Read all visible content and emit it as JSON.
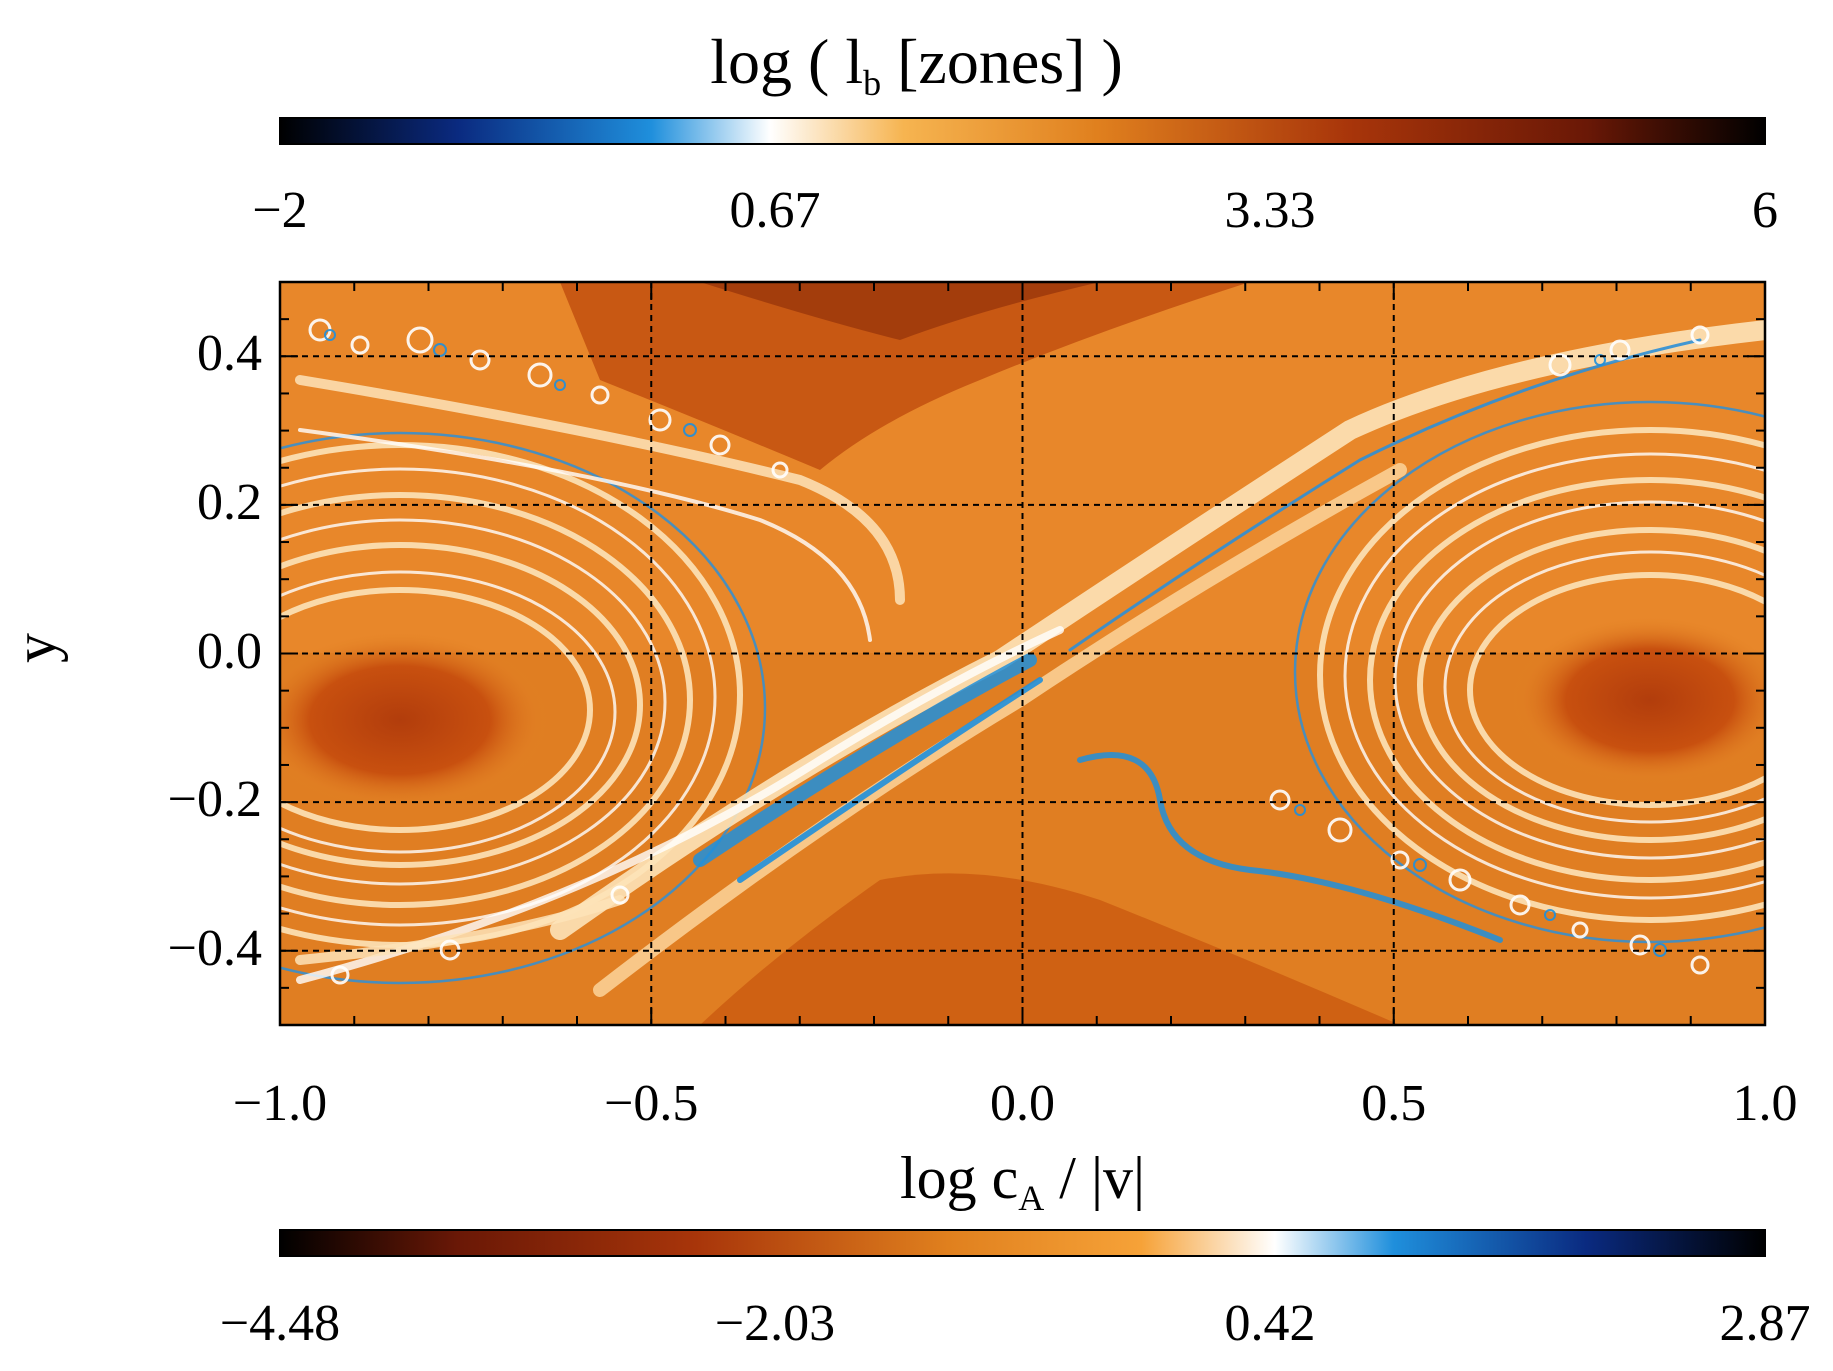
{
  "chart_data": {
    "type": "heatmap",
    "title": "log ( l_b [zones] )",
    "title_parts": {
      "pre": "log ( l",
      "sub": "b",
      "post": " [zones] )"
    },
    "xlabel": "log c_A / |v|",
    "xlabel_parts": {
      "pre": "log c",
      "sub": "A",
      "post": " / |v|"
    },
    "ylabel": "y",
    "x_range": [
      -1.0,
      1.0
    ],
    "y_range": [
      -0.5,
      0.5
    ],
    "x_ticks": [
      "−1.0",
      "−0.5",
      "0.0",
      "0.5",
      "1.0"
    ],
    "y_ticks": [
      "0.4",
      "0.2",
      "0.0",
      "−0.2",
      "−0.4"
    ],
    "grid_x": [
      -0.5,
      0.0,
      0.5
    ],
    "grid_y": [
      -0.4,
      -0.2,
      0.0,
      0.2,
      0.4
    ],
    "grid": true,
    "top_panel_variable": "log l_b",
    "bottom_panel_variable": "log c_A / |v|",
    "colorbars": [
      {
        "position": "top",
        "range": [
          -2,
          6
        ],
        "ticks": [
          "−2",
          "0.67",
          "3.33",
          "6"
        ],
        "colors": [
          "#000000",
          "#0a2a80",
          "#1f8fdc",
          "#ffffff",
          "#f6b450",
          "#e0801e",
          "#a8350a",
          "#6a1806",
          "#000000"
        ]
      },
      {
        "position": "bottom",
        "range": [
          -4.48,
          2.87
        ],
        "ticks": [
          "−4.48",
          "−2.03",
          "0.42",
          "2.87"
        ],
        "colors": [
          "#000000",
          "#6a1806",
          "#a8350a",
          "#e0801e",
          "#f6a238",
          "#ffffff",
          "#1f8fdc",
          "#0a2a80",
          "#000000"
        ]
      }
    ]
  }
}
